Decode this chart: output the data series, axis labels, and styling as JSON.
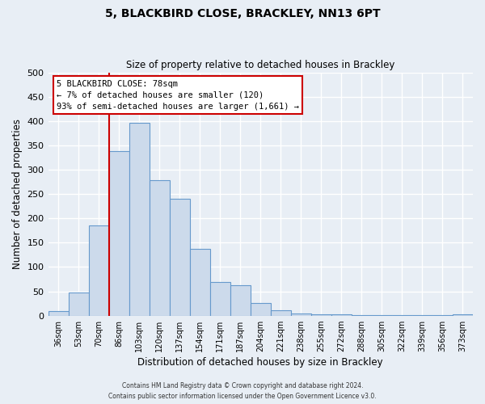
{
  "title": "5, BLACKBIRD CLOSE, BRACKLEY, NN13 6PT",
  "subtitle": "Size of property relative to detached houses in Brackley",
  "xlabel": "Distribution of detached houses by size in Brackley",
  "ylabel": "Number of detached properties",
  "categories": [
    "36sqm",
    "53sqm",
    "70sqm",
    "86sqm",
    "103sqm",
    "120sqm",
    "137sqm",
    "154sqm",
    "171sqm",
    "187sqm",
    "204sqm",
    "221sqm",
    "238sqm",
    "255sqm",
    "272sqm",
    "288sqm",
    "305sqm",
    "322sqm",
    "339sqm",
    "356sqm",
    "373sqm"
  ],
  "bar_values": [
    10,
    47,
    185,
    338,
    397,
    278,
    240,
    137,
    70,
    62,
    26,
    11,
    5,
    3,
    2,
    1,
    1,
    1,
    1,
    1,
    2
  ],
  "bar_color": "#ccdaeb",
  "bar_edge_color": "#6699cc",
  "background_color": "#e8eef5",
  "grid_color": "#ffffff",
  "ylim": [
    0,
    500
  ],
  "yticks": [
    0,
    50,
    100,
    150,
    200,
    250,
    300,
    350,
    400,
    450,
    500
  ],
  "marker_label": "5 BLACKBIRD CLOSE: 78sqm",
  "annotation_line1": "← 7% of detached houses are smaller (120)",
  "annotation_line2": "93% of semi-detached houses are larger (1,661) →",
  "annotation_box_color": "#ffffff",
  "annotation_box_edge_color": "#cc0000",
  "marker_line_color": "#cc0000",
  "footer_line1": "Contains HM Land Registry data © Crown copyright and database right 2024.",
  "footer_line2": "Contains public sector information licensed under the Open Government Licence v3.0."
}
